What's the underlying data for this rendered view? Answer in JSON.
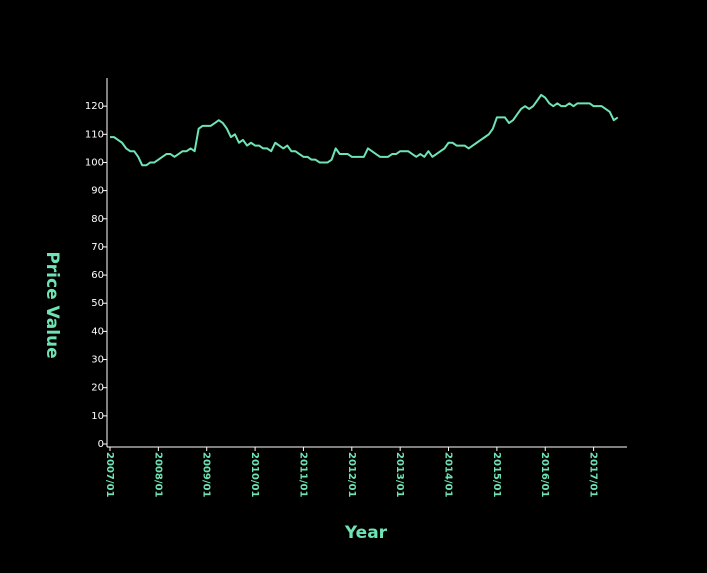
{
  "chart_data": {
    "type": "line",
    "x_label": "Year",
    "y_label": "Price Value",
    "categories": [
      "2007/01",
      null,
      null,
      null,
      null,
      null,
      null,
      null,
      null,
      null,
      null,
      null,
      "2008/01",
      null,
      null,
      null,
      null,
      null,
      null,
      null,
      null,
      null,
      null,
      null,
      "2009/01",
      null,
      null,
      null,
      null,
      null,
      null,
      null,
      null,
      null,
      null,
      null,
      "2010/01",
      null,
      null,
      null,
      null,
      null,
      null,
      null,
      null,
      null,
      null,
      null,
      "2011/01",
      null,
      null,
      null,
      null,
      null,
      null,
      null,
      null,
      null,
      null,
      null,
      "2012/01",
      null,
      null,
      null,
      null,
      null,
      null,
      null,
      null,
      null,
      null,
      null,
      "2013/01",
      null,
      null,
      null,
      null,
      null,
      null,
      null,
      null,
      null,
      null,
      null,
      "2014/01",
      null,
      null,
      null,
      null,
      null,
      null,
      null,
      null,
      null,
      null,
      null,
      "2015/01",
      null,
      null,
      null,
      null,
      null,
      null,
      null,
      null,
      null,
      null,
      null,
      "2016/01",
      null,
      null,
      null,
      null,
      null,
      null,
      null,
      null,
      null,
      null,
      null,
      "2017/01",
      null,
      null,
      null,
      null,
      null,
      null
    ],
    "values": [
      109,
      109,
      108,
      107,
      105,
      104,
      104,
      102,
      99,
      99,
      100,
      100,
      101,
      102,
      103,
      103,
      102,
      103,
      104,
      104,
      105,
      104,
      112,
      113,
      113,
      113,
      114,
      115,
      114,
      112,
      109,
      110,
      107,
      108,
      106,
      107,
      106,
      106,
      105,
      105,
      104,
      107,
      106,
      105,
      106,
      104,
      104,
      103,
      102,
      102,
      101,
      101,
      100,
      100,
      100,
      101,
      105,
      103,
      103,
      103,
      102,
      102,
      102,
      102,
      105,
      104,
      103,
      102,
      102,
      102,
      103,
      103,
      104,
      104,
      104,
      103,
      102,
      103,
      102,
      104,
      102,
      103,
      104,
      105,
      107,
      107,
      106,
      106,
      106,
      105,
      106,
      107,
      108,
      109,
      110,
      112,
      116,
      116,
      116,
      114,
      115,
      117,
      119,
      120,
      119,
      120,
      122,
      124,
      123,
      121,
      120,
      121,
      120,
      120,
      121,
      120,
      121,
      121,
      121,
      121,
      120,
      120,
      120,
      119,
      118,
      115,
      116
    ],
    "color": "#6fe3b4",
    "ylim": [
      0,
      130
    ],
    "yticks": [
      0,
      10,
      20,
      30,
      40,
      50,
      60,
      70,
      80,
      90,
      100,
      110,
      120
    ]
  }
}
